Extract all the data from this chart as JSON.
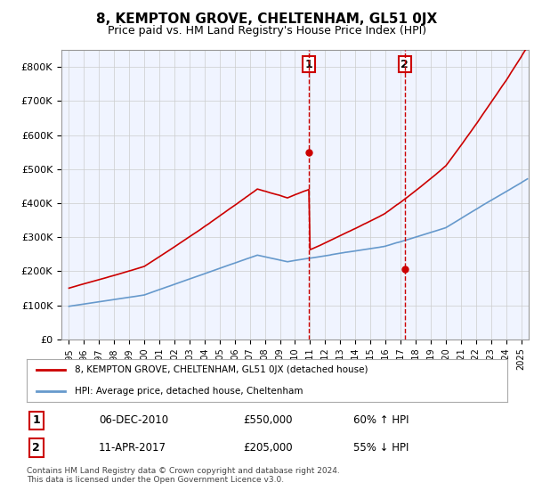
{
  "title": "8, KEMPTON GROVE, CHELTENHAM, GL51 0JX",
  "subtitle": "Price paid vs. HM Land Registry's House Price Index (HPI)",
  "legend_line1": "8, KEMPTON GROVE, CHELTENHAM, GL51 0JX (detached house)",
  "legend_line2": "HPI: Average price, detached house, Cheltenham",
  "footnote": "Contains HM Land Registry data © Crown copyright and database right 2024.\nThis data is licensed under the Open Government Licence v3.0.",
  "sale1_date": "06-DEC-2010",
  "sale1_price": 550000,
  "sale1_label": "60% ↑ HPI",
  "sale2_date": "11-APR-2017",
  "sale2_price": 205000,
  "sale2_label": "55% ↓ HPI",
  "sale1_x": 2010.92,
  "sale2_x": 2017.28,
  "ylim": [
    0,
    850000
  ],
  "xlim_left": 1994.5,
  "xlim_right": 2025.5,
  "property_color": "#cc0000",
  "hpi_color": "#6699cc",
  "vline_color": "#cc0000",
  "background_color": "#f0f4ff",
  "plot_bg": "#ffffff",
  "grid_color": "#cccccc"
}
